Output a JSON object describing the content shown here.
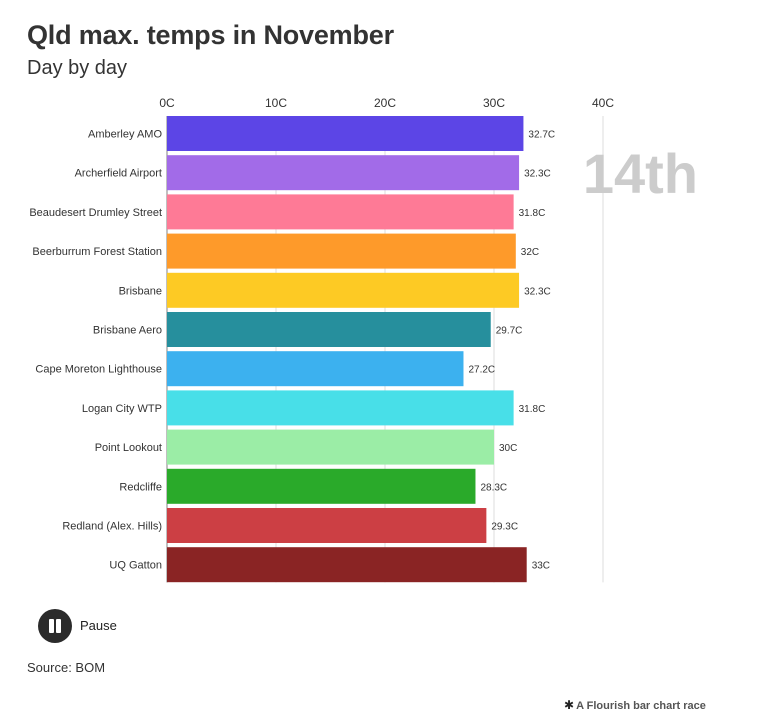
{
  "header": {
    "title": "Qld max. temps in November",
    "subtitle": "Day by day"
  },
  "chart_data": {
    "type": "bar",
    "orientation": "horizontal",
    "date_label": "14th",
    "xlim": [
      0,
      40
    ],
    "x_ticks": [
      "0C",
      "10C",
      "20C",
      "30C",
      "40C"
    ],
    "grid": true,
    "categories": [
      "Amberley AMO",
      "Archerfield Airport",
      "Beaudesert Drumley Street",
      "Beerburrum Forest Station",
      "Brisbane",
      "Brisbane Aero",
      "Cape Moreton Lighthouse",
      "Logan City WTP",
      "Point Lookout",
      "Redcliffe",
      "Redland (Alex. Hills)",
      "UQ Gatton"
    ],
    "values": [
      32.7,
      32.3,
      31.8,
      32,
      32.3,
      29.7,
      27.2,
      31.8,
      30,
      28.3,
      29.3,
      33
    ],
    "value_labels": [
      "32.7C",
      "32.3C",
      "31.8C",
      "32C",
      "32.3C",
      "29.7C",
      "27.2C",
      "31.8C",
      "30C",
      "28.3C",
      "29.3C",
      "33C"
    ],
    "colors": [
      "#5c45e6",
      "#a26be8",
      "#fe7a96",
      "#fe9a2a",
      "#fdca24",
      "#268f9d",
      "#3cb1ef",
      "#48dfe8",
      "#9beda6",
      "#2aaa2a",
      "#cc3f44",
      "#8a2424"
    ]
  },
  "controls": {
    "pause_label": "Pause"
  },
  "footer": {
    "source": "Source: BOM",
    "credit": "A Flourish bar chart race",
    "credit_icon": "asterisk-icon"
  }
}
